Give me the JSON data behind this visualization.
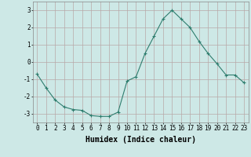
{
  "x": [
    0,
    1,
    2,
    3,
    4,
    5,
    6,
    7,
    8,
    9,
    10,
    11,
    12,
    13,
    14,
    15,
    16,
    17,
    18,
    19,
    20,
    21,
    22,
    23
  ],
  "y": [
    -0.7,
    -1.5,
    -2.2,
    -2.6,
    -2.75,
    -2.8,
    -3.1,
    -3.15,
    -3.15,
    -2.9,
    -1.1,
    -0.85,
    0.5,
    1.5,
    2.5,
    3.0,
    2.5,
    2.0,
    1.2,
    0.5,
    -0.1,
    -0.75,
    -0.75,
    -1.2
  ],
  "line_color": "#2e7d6e",
  "marker": "+",
  "marker_size": 3,
  "marker_linewidth": 0.8,
  "bg_color": "#cde8e6",
  "grid_color": "#b8a8a8",
  "xlabel": "Humidex (Indice chaleur)",
  "xlabel_fontsize": 7,
  "tick_fontsize": 5.5,
  "ylim": [
    -3.5,
    3.5
  ],
  "xlim": [
    -0.5,
    23.5
  ],
  "yticks": [
    -3,
    -2,
    -1,
    0,
    1,
    2,
    3
  ],
  "xticks": [
    0,
    1,
    2,
    3,
    4,
    5,
    6,
    7,
    8,
    9,
    10,
    11,
    12,
    13,
    14,
    15,
    16,
    17,
    18,
    19,
    20,
    21,
    22,
    23
  ],
  "line_width": 0.8,
  "spine_color": "#888888"
}
